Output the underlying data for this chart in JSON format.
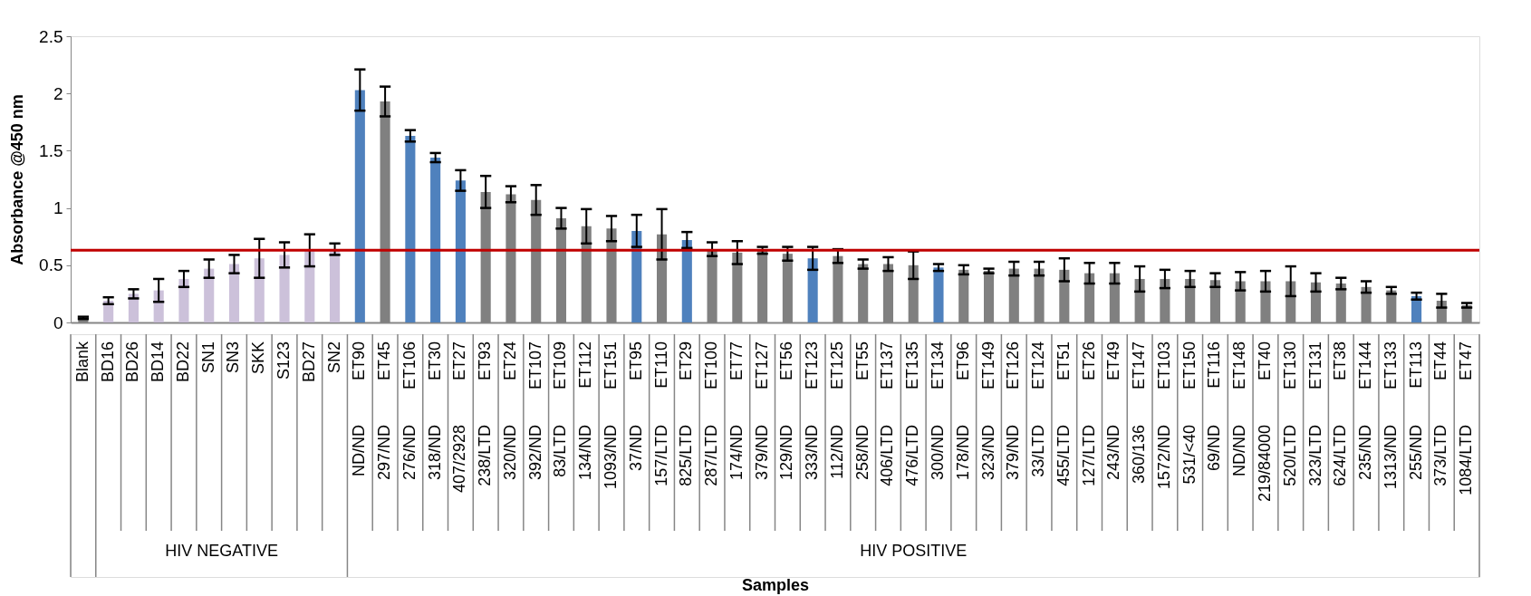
{
  "chart_data": {
    "type": "bar",
    "ylabel": "Absorbance @450 nm",
    "categories": [
      "Blank",
      "BD16",
      "BD26",
      "BD14",
      "BD22",
      "SN1",
      "SN3",
      "SKK",
      "S123",
      "BD27",
      "SN2",
      "ET90",
      "ET45",
      "ET106",
      "ET30",
      "ET27",
      "ET93",
      "ET24",
      "ET107",
      "ET109",
      "ET112",
      "ET151",
      "ET95",
      "ET110",
      "ET29",
      "ET100",
      "ET77",
      "ET127",
      "ET56",
      "ET123",
      "ET125",
      "ET55",
      "ET137",
      "ET135",
      "ET134",
      "ET96",
      "ET149",
      "ET126",
      "ET124",
      "ET51",
      "ET26",
      "ET49",
      "ET147",
      "ET103",
      "ET150",
      "ET116",
      "ET148",
      "ET40",
      "ET130",
      "ET131",
      "ET38",
      "ET144",
      "ET133",
      "ET113",
      "ET44",
      "ET47"
    ],
    "values": [
      0.04,
      0.19,
      0.25,
      0.28,
      0.38,
      0.47,
      0.51,
      0.56,
      0.59,
      0.63,
      0.64,
      2.03,
      1.93,
      1.63,
      1.44,
      1.24,
      1.14,
      1.12,
      1.07,
      0.91,
      0.84,
      0.82,
      0.8,
      0.77,
      0.72,
      0.64,
      0.61,
      0.63,
      0.6,
      0.56,
      0.58,
      0.51,
      0.51,
      0.5,
      0.48,
      0.46,
      0.45,
      0.47,
      0.47,
      0.46,
      0.43,
      0.43,
      0.38,
      0.38,
      0.38,
      0.37,
      0.36,
      0.36,
      0.36,
      0.35,
      0.34,
      0.31,
      0.28,
      0.23,
      0.19,
      0.15
    ],
    "errors": [
      0.01,
      0.03,
      0.04,
      0.1,
      0.07,
      0.08,
      0.08,
      0.17,
      0.11,
      0.14,
      0.05,
      0.18,
      0.13,
      0.05,
      0.04,
      0.09,
      0.14,
      0.07,
      0.13,
      0.09,
      0.15,
      0.11,
      0.14,
      0.22,
      0.07,
      0.06,
      0.1,
      0.03,
      0.06,
      0.1,
      0.06,
      0.04,
      0.06,
      0.12,
      0.03,
      0.04,
      0.02,
      0.06,
      0.06,
      0.1,
      0.09,
      0.09,
      0.11,
      0.08,
      0.07,
      0.06,
      0.08,
      0.09,
      0.13,
      0.08,
      0.05,
      0.05,
      0.03,
      0.03,
      0.06,
      0.02
    ],
    "colors": [
      "#808080",
      "#ccc1da",
      "#ccc1da",
      "#ccc1da",
      "#ccc1da",
      "#ccc1da",
      "#ccc1da",
      "#ccc1da",
      "#ccc1da",
      "#ccc1da",
      "#ccc1da",
      "#4f81bd",
      "#808080",
      "#4f81bd",
      "#4f81bd",
      "#4f81bd",
      "#808080",
      "#808080",
      "#808080",
      "#808080",
      "#808080",
      "#808080",
      "#4f81bd",
      "#808080",
      "#4f81bd",
      "#808080",
      "#808080",
      "#808080",
      "#808080",
      "#4f81bd",
      "#808080",
      "#808080",
      "#808080",
      "#808080",
      "#4f81bd",
      "#808080",
      "#808080",
      "#808080",
      "#808080",
      "#808080",
      "#808080",
      "#808080",
      "#808080",
      "#808080",
      "#808080",
      "#808080",
      "#808080",
      "#808080",
      "#808080",
      "#808080",
      "#808080",
      "#808080",
      "#808080",
      "#4f81bd",
      "#808080",
      "#808080"
    ],
    "ylim": [
      0,
      2.5
    ],
    "yticks": [
      0,
      0.5,
      1,
      1.5,
      2,
      2.5
    ],
    "ref_lines": [
      {
        "axis": "y",
        "value": 0.63,
        "color": "#c00000"
      }
    ],
    "annotations": [
      "ND/ND",
      "297/ND",
      "276/ND",
      "318/ND",
      "407/2928",
      "238/LTD",
      "320/ND",
      "392/ND",
      "83/LTD",
      "134/ND",
      "1093/ND",
      "37/ND",
      "157/LTD",
      "825/LTD",
      "287/LTD",
      "174/ND",
      "379/ND",
      "129/ND",
      "333/ND",
      "112/ND",
      "258/ND",
      "406/LTD",
      "476/LTD",
      "300/ND",
      "178/ND",
      "323/ND",
      "379/ND",
      "33/LTD",
      "455/LTD",
      "127/LTD",
      "243/ND",
      "360/136",
      "1572/ND",
      "531/<40",
      "69/ND",
      "ND/ND",
      "219/84000",
      "520/LTD",
      "323/LTD",
      "624/LTD",
      "235/ND",
      "1313/ND",
      "255/ND",
      "373/LTD",
      "1084/LTD",
      "HIV NEGATIVE",
      "HIV POSITIVE",
      "Samples"
    ]
  }
}
